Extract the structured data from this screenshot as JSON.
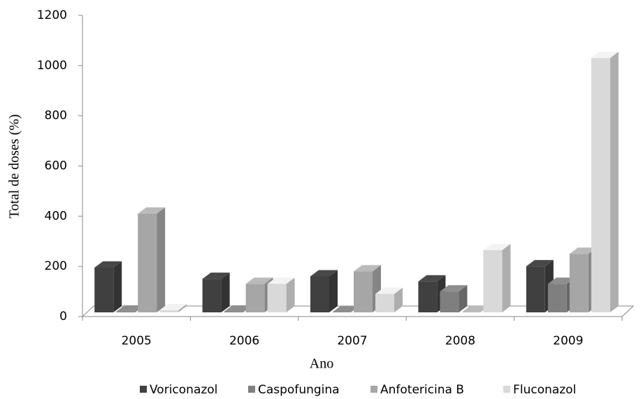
{
  "chart_data": {
    "type": "bar3d",
    "x_label": "Ano",
    "y_label": "Total de doses (%)",
    "categories": [
      "2005",
      "2006",
      "2007",
      "2008",
      "2009"
    ],
    "series": [
      {
        "name": "Voriconazol",
        "color": "#404040",
        "values": [
          195,
          150,
          160,
          140,
          200
        ]
      },
      {
        "name": "Caspofungina",
        "color": "#7f7f7f",
        "values": [
          20,
          20,
          15,
          100,
          130
        ]
      },
      {
        "name": "Anfotericina B",
        "color": "#a6a6a6",
        "values": [
          410,
          130,
          180,
          0,
          250
        ]
      },
      {
        "name": "Fluconazol",
        "color": "#d9d9d9",
        "values": [
          25,
          130,
          90,
          265,
          1030
        ]
      }
    ],
    "ylim": [
      0,
      1200
    ],
    "yticks": [
      0,
      200,
      400,
      600,
      800,
      1000,
      1200
    ]
  }
}
